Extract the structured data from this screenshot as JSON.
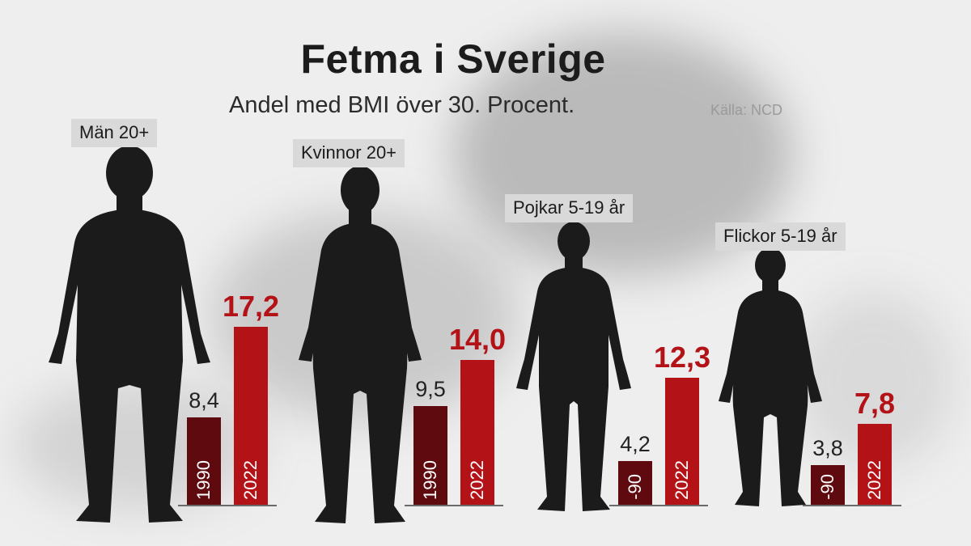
{
  "title": "Fetma i Sverige",
  "subtitle": "Andel med BMI över 30. Procent.",
  "source": "Källa: NCD",
  "colors": {
    "old_bar": "#5e0a0e",
    "new_bar": "#b31217",
    "silhouette": "#1b1b1b",
    "label_bg": "#d9d9d9"
  },
  "chart_data": {
    "type": "bar",
    "title": "Fetma i Sverige",
    "subtitle": "Andel med BMI över 30. Procent.",
    "ylim": [
      0,
      20
    ],
    "grid": false,
    "groups": [
      {
        "label": "Män 20+",
        "old": {
          "year": "1990",
          "value": 8.4,
          "value_label": "8,4"
        },
        "new": {
          "year": "2022",
          "value": 17.2,
          "value_label": "17,2"
        }
      },
      {
        "label": "Kvinnor 20+",
        "old": {
          "year": "1990",
          "value": 9.5,
          "value_label": "9,5"
        },
        "new": {
          "year": "2022",
          "value": 14.0,
          "value_label": "14,0"
        }
      },
      {
        "label": "Pojkar 5-19 år",
        "old": {
          "year": "-90",
          "value": 4.2,
          "value_label": "4,2"
        },
        "new": {
          "year": "2022",
          "value": 12.3,
          "value_label": "12,3"
        }
      },
      {
        "label": "Flickor 5-19 år",
        "old": {
          "year": "-90",
          "value": 3.8,
          "value_label": "3,8"
        },
        "new": {
          "year": "2022",
          "value": 7.8,
          "value_label": "7,8"
        }
      }
    ]
  }
}
